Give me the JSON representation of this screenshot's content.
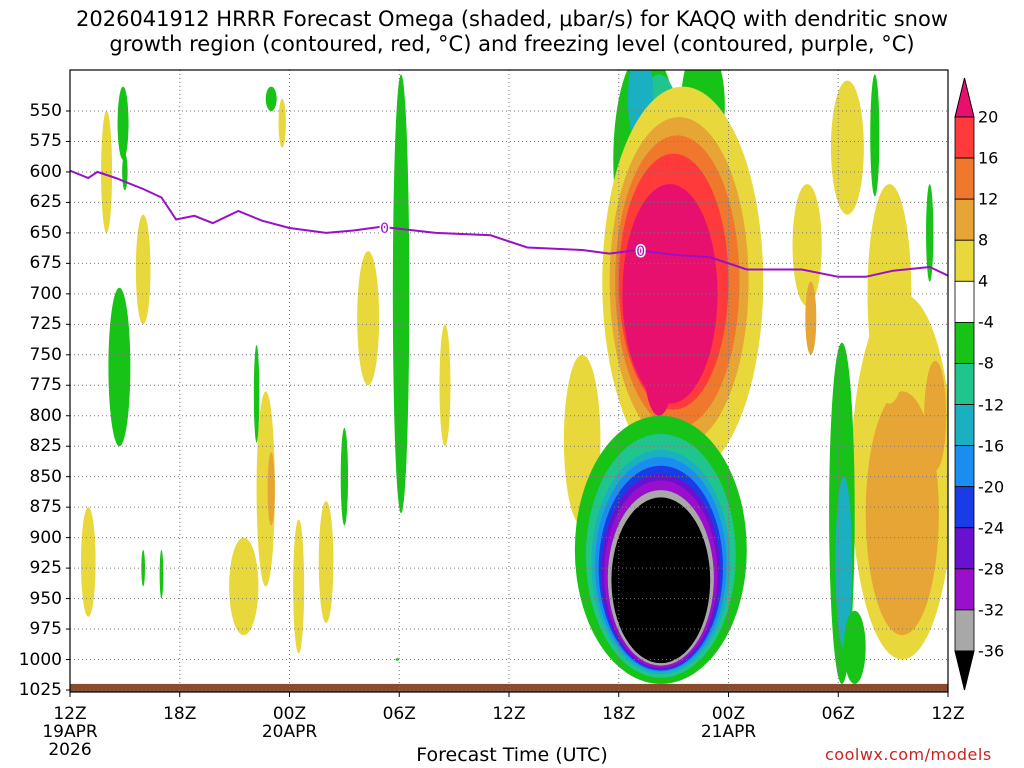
{
  "title": {
    "line1": "2026041912 HRRR Forecast Omega (shaded, μbar/s) for KAQQ with dendritic snow",
    "line2": "growth region (contoured, red, °C) and freezing level (contoured, purple, °C)"
  },
  "credit": "coolwx.com/models",
  "chart_data": {
    "type": "time-height contour",
    "xlabel": "Forecast Time (UTC)",
    "ylabel": "",
    "x_range_hours": [
      0,
      48
    ],
    "y_range_mb": [
      525,
      1030
    ],
    "y_scale": "linear (pressure)",
    "grid": true,
    "x_ticks": [
      {
        "hour": 0,
        "label": "12Z",
        "date": "19APR",
        "year": "2026"
      },
      {
        "hour": 6,
        "label": "18Z",
        "date": "",
        "year": ""
      },
      {
        "hour": 12,
        "label": "00Z",
        "date": "20APR",
        "year": ""
      },
      {
        "hour": 18,
        "label": "06Z",
        "date": "",
        "year": ""
      },
      {
        "hour": 24,
        "label": "12Z",
        "date": "",
        "year": ""
      },
      {
        "hour": 30,
        "label": "18Z",
        "date": "",
        "year": ""
      },
      {
        "hour": 36,
        "label": "00Z",
        "date": "21APR",
        "year": ""
      },
      {
        "hour": 42,
        "label": "06Z",
        "date": "",
        "year": ""
      },
      {
        "hour": 48,
        "label": "12Z",
        "date": "",
        "year": ""
      }
    ],
    "y_ticks": [
      "550",
      "575",
      "600",
      "625",
      "650",
      "675",
      "700",
      "725",
      "750",
      "775",
      "800",
      "825",
      "850",
      "875",
      "900",
      "925",
      "950",
      "975",
      "1000",
      "1025"
    ],
    "colorbar": {
      "label_values": [
        "20",
        "16",
        "12",
        "8",
        "4",
        "-4",
        "-8",
        "-12",
        "-16",
        "-20",
        "-24",
        "-28",
        "-32",
        "-36"
      ],
      "bins": [
        {
          "range": ">20",
          "color": "#e8106e"
        },
        {
          "range": "16 to 20",
          "color": "#ff3a3a"
        },
        {
          "range": "12 to 16",
          "color": "#f0782d"
        },
        {
          "range": "8 to 12",
          "color": "#e6a535"
        },
        {
          "range": "4 to 8",
          "color": "#e8d83b"
        },
        {
          "range": "-4 to 4",
          "color": "#ffffff"
        },
        {
          "range": "-8 to -4",
          "color": "#17c317"
        },
        {
          "range": "-12 to -8",
          "color": "#20c58d"
        },
        {
          "range": "-16 to -12",
          "color": "#1ab0c2"
        },
        {
          "range": "-20 to -16",
          "color": "#1a8ef0"
        },
        {
          "range": "-24 to -20",
          "color": "#1a3ce6"
        },
        {
          "range": "-28 to -24",
          "color": "#6a10d0"
        },
        {
          "range": "-32 to -28",
          "color": "#9a0fcc"
        },
        {
          "range": "-36 to -32",
          "color": "#a8a8a8"
        },
        {
          "range": "<-36",
          "color": "#000000"
        }
      ]
    },
    "freezing_level": {
      "label": "0",
      "color": "#9a10c8",
      "points": [
        [
          0,
          599
        ],
        [
          1,
          605
        ],
        [
          1.5,
          600
        ],
        [
          2.5,
          605
        ],
        [
          4,
          614
        ],
        [
          5,
          621
        ],
        [
          5.8,
          639
        ],
        [
          6.8,
          636
        ],
        [
          7.8,
          642
        ],
        [
          9.2,
          632
        ],
        [
          10.5,
          640
        ],
        [
          12,
          646
        ],
        [
          14,
          650
        ],
        [
          15.5,
          648
        ],
        [
          17,
          645
        ],
        [
          20,
          650
        ],
        [
          23,
          652
        ],
        [
          25,
          662
        ],
        [
          28,
          664
        ],
        [
          29.5,
          667
        ],
        [
          31,
          664
        ],
        [
          33,
          668
        ],
        [
          35,
          670
        ],
        [
          37,
          680
        ],
        [
          40,
          680
        ],
        [
          42,
          686
        ],
        [
          43.5,
          686
        ],
        [
          45,
          681
        ],
        [
          47,
          678
        ],
        [
          48,
          685
        ]
      ]
    },
    "series": [
      {
        "name": "omega_max_upward",
        "time_hr": 33,
        "pressure_mb": 710,
        "value_ubar_s": "> 20"
      },
      {
        "name": "omega_max_downward",
        "time_hr": 32.5,
        "pressure_mb": 930,
        "value_ubar_s": "< -36"
      }
    ],
    "terrain_top_mb": 1020,
    "terrain_color": "#8b4a2b"
  }
}
